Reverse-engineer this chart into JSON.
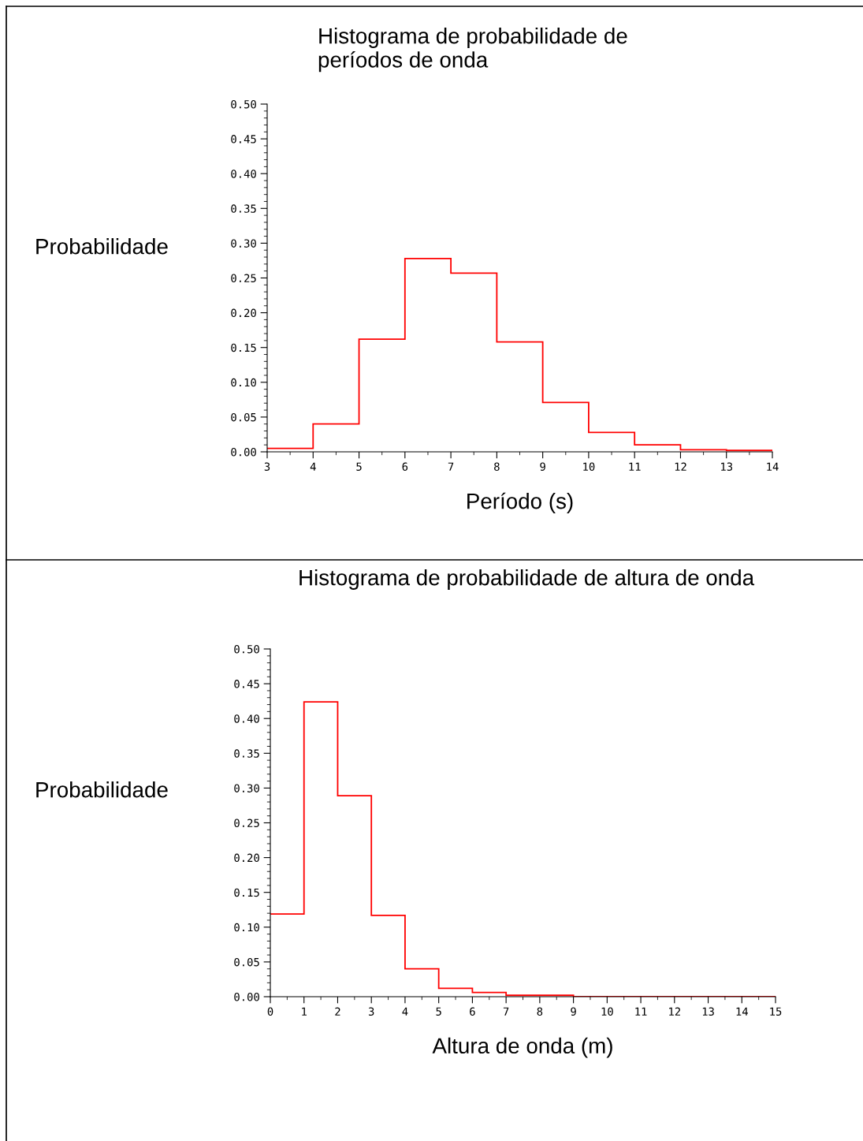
{
  "chart_data": [
    {
      "type": "histogram",
      "title": "Histograma de probabilidade de\nperíodos de onda",
      "xlabel": "Período (s)",
      "ylabel": "Probabilidade",
      "color": "#ff0000",
      "bins": [
        3,
        4,
        5,
        6,
        7,
        8,
        9,
        10,
        11,
        12,
        13,
        14
      ],
      "values": [
        0.005,
        0.04,
        0.162,
        0.278,
        0.257,
        0.158,
        0.071,
        0.028,
        0.01,
        0.003,
        0.002
      ],
      "xlim": [
        3,
        14
      ],
      "xticks": [
        3,
        4,
        5,
        6,
        7,
        8,
        9,
        10,
        11,
        12,
        13,
        14
      ],
      "ylim": [
        0,
        0.5
      ],
      "yticks": [
        {
          "value": 0,
          "label": "0.00"
        },
        {
          "value": 0.05,
          "label": "0.05"
        },
        {
          "value": 0.1,
          "label": "0.10"
        },
        {
          "value": 0.15,
          "label": "0.15"
        },
        {
          "value": 0.2,
          "label": "0.20"
        },
        {
          "value": 0.25,
          "label": "0.25"
        },
        {
          "value": 0.3,
          "label": "0.30"
        },
        {
          "value": 0.35,
          "label": "0.35"
        },
        {
          "value": 0.4,
          "label": "0.40"
        },
        {
          "value": 0.45,
          "label": "0.45"
        },
        {
          "value": 0.5,
          "label": "0.50"
        }
      ],
      "grid": false
    },
    {
      "type": "histogram",
      "title": "Histograma de probabilidade de altura de onda",
      "xlabel": "Altura de onda (m)",
      "ylabel": "Probabilidade",
      "color": "#ff0000",
      "bins": [
        0,
        1,
        2,
        3,
        4,
        5,
        6,
        7,
        8,
        9,
        10,
        11,
        12,
        13,
        14,
        15
      ],
      "values": [
        0.119,
        0.424,
        0.289,
        0.117,
        0.04,
        0.012,
        0.006,
        0.002,
        0.002,
        0,
        0,
        0,
        0,
        0,
        0
      ],
      "xlim": [
        0,
        15
      ],
      "xticks": [
        0,
        1,
        2,
        3,
        4,
        5,
        6,
        7,
        8,
        9,
        10,
        11,
        12,
        13,
        14,
        15
      ],
      "ylim": [
        0,
        0.5
      ],
      "yticks": [
        {
          "value": 0,
          "label": "0.00"
        },
        {
          "value": 0.05,
          "label": "0.05"
        },
        {
          "value": 0.1,
          "label": "0.10"
        },
        {
          "value": 0.15,
          "label": "0.15"
        },
        {
          "value": 0.2,
          "label": "0.20"
        },
        {
          "value": 0.25,
          "label": "0.25"
        },
        {
          "value": 0.3,
          "label": "0.30"
        },
        {
          "value": 0.35,
          "label": "0.35"
        },
        {
          "value": 0.4,
          "label": "0.40"
        },
        {
          "value": 0.45,
          "label": "0.45"
        },
        {
          "value": 0.5,
          "label": "0.50"
        }
      ],
      "grid": false
    }
  ]
}
